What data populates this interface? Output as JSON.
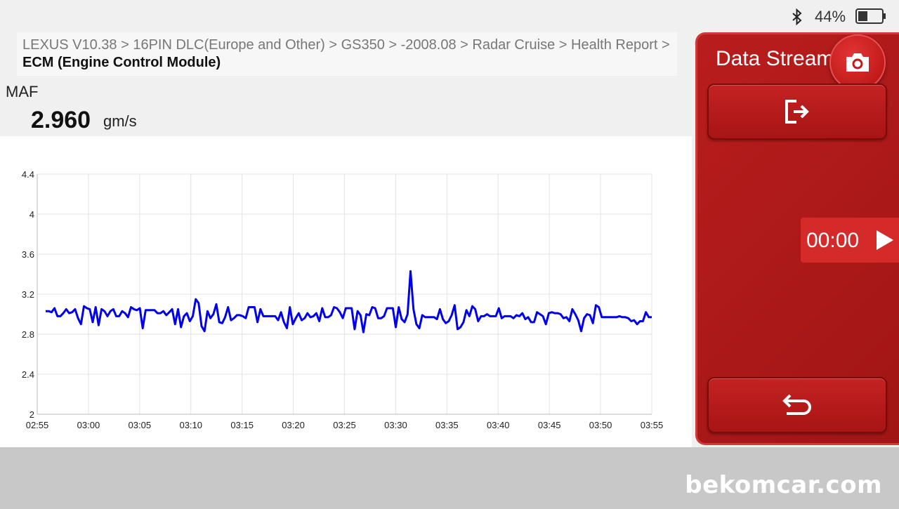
{
  "status_bar": {
    "battery_pct": "44%",
    "icons": [
      "bluetooth-icon",
      "battery-icon"
    ]
  },
  "breadcrumb": {
    "path": "LEXUS V10.38 > 16PIN DLC(Europe and Other) > GS350 > -2008.08 > Radar Cruise > Health Report > ",
    "current": "ECM (Engine Control Module)"
  },
  "parameter": {
    "name": "MAF",
    "value": "2.960",
    "unit": "gm/s"
  },
  "panel": {
    "title": "Data Stream",
    "timer": "00:00",
    "icons": [
      "camera-icon",
      "export-icon",
      "play-icon",
      "back-icon"
    ],
    "accent_color": "#b91d1d"
  },
  "watermark": "bekomcar.com",
  "chart_data": {
    "type": "line",
    "title": "",
    "xlabel": "",
    "ylabel": "",
    "ylim": [
      2,
      4.4
    ],
    "y_ticks": [
      "2",
      "2.4",
      "2.8",
      "3.2",
      "3.6",
      "4",
      "4.4"
    ],
    "x_ticks": [
      "02:55",
      "03:00",
      "03:05",
      "03:10",
      "03:15",
      "03:20",
      "03:25",
      "03:30",
      "03:35",
      "03:40",
      "03:45",
      "03:50",
      "03:55"
    ],
    "x_start_seconds": 175,
    "x_end_seconds": 235,
    "grid": true,
    "line_color": "#0000ee",
    "series": [
      {
        "values": [
          3.03,
          3.03,
          3.02,
          3.06,
          2.98,
          2.98,
          3.01,
          3.05,
          3.01,
          3.02,
          3.05,
          2.96,
          2.9,
          3.08,
          3.06,
          3.05,
          2.92,
          3.07,
          2.89,
          3.05,
          3.03,
          2.98,
          3.03,
          3.05,
          2.98,
          2.98,
          3.03,
          3.01,
          2.97,
          3.07,
          3.05,
          3.04,
          3.06,
          2.86,
          3.04,
          3.04,
          3.04,
          3.04,
          3.01,
          3.01,
          3.03,
          2.99,
          3.02,
          3.05,
          2.9,
          3.05,
          2.87,
          2.98,
          3.01,
          2.93,
          2.98,
          3.15,
          3.11,
          2.88,
          2.83,
          3.03,
          2.96,
          3.0,
          3.1,
          2.92,
          2.91,
          2.97,
          3.07,
          2.94,
          2.96,
          2.99,
          2.99,
          2.98,
          2.96,
          3.07,
          3.07,
          3.07,
          2.92,
          3.05,
          2.98,
          2.98,
          2.98,
          2.98,
          2.98,
          2.94,
          3.02,
          2.92,
          2.86,
          3.07,
          2.9,
          2.96,
          3.01,
          2.94,
          2.96,
          3.01,
          2.97,
          2.98,
          3.01,
          2.93,
          3.06,
          2.97,
          2.97,
          2.99,
          3.07,
          3.06,
          3.02,
          2.96,
          3.06,
          3.06,
          3.06,
          2.85,
          3.03,
          2.99,
          2.82,
          3.0,
          2.99,
          3.07,
          3.06,
          2.96,
          2.96,
          2.98,
          3.06,
          3.06,
          3.06,
          2.87,
          3.07,
          2.95,
          2.92,
          3.0,
          3.43,
          3.05,
          2.9,
          2.86,
          2.99,
          2.97,
          2.97,
          2.97,
          2.97,
          2.95,
          3.05,
          2.95,
          2.91,
          2.93,
          2.99,
          3.09,
          2.85,
          2.87,
          2.92,
          3.04,
          2.98,
          3.08,
          3.05,
          2.93,
          2.98,
          2.98,
          3.0,
          2.98,
          2.98,
          2.98,
          3.06,
          2.96,
          2.98,
          2.98,
          2.98,
          2.96,
          2.99,
          2.98,
          3.01,
          2.95,
          2.97,
          2.92,
          2.92,
          3.02,
          3.0,
          2.98,
          2.9,
          3.01,
          3.02,
          3.01,
          3.01,
          3.0,
          2.96,
          2.97,
          2.93,
          3.05,
          3.0,
          2.94,
          2.83,
          2.96,
          3.0,
          2.99,
          2.91,
          3.09,
          3.07,
          2.97,
          2.97,
          2.97,
          2.97,
          2.97,
          2.97,
          2.98,
          2.97,
          2.97,
          2.96,
          2.93,
          2.94,
          2.9,
          2.93,
          2.93,
          3.02,
          2.97,
          2.97
        ]
      }
    ]
  }
}
